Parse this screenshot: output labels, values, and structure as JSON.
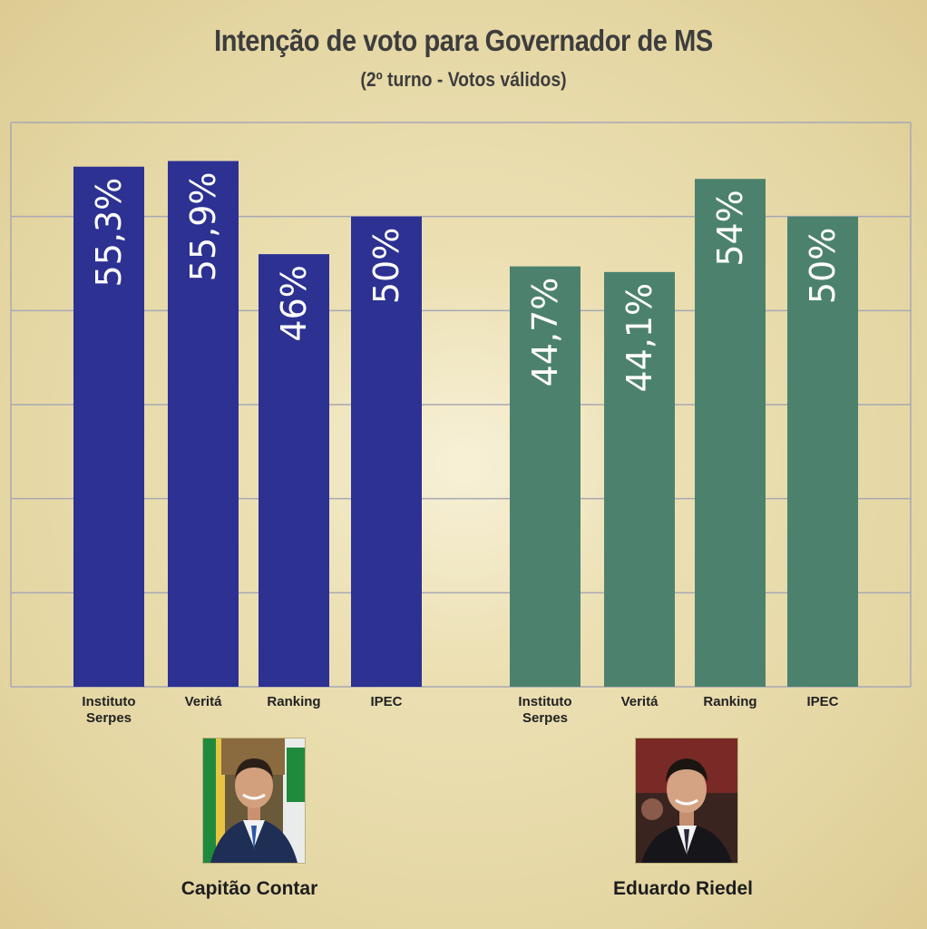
{
  "header": {
    "title": "Intenção de voto para Governador de MS",
    "subtitle": "(2º turno - Votos válidos)"
  },
  "colors": {
    "candidate_1": "#2c3192",
    "candidate_2": "#4c826d",
    "gridline": "#a8a8b4"
  },
  "candidates": [
    {
      "name": "Capitão Contar",
      "photo": "candidate-photo-capitao-contar"
    },
    {
      "name": "Eduardo Riedel",
      "photo": "candidate-photo-eduardo-riedel"
    }
  ],
  "chart_data": {
    "type": "bar",
    "title": "Intenção de voto para Governador de MS",
    "subtitle": "(2º turno - Votos válidos)",
    "ylim": [
      0,
      60
    ],
    "grid": true,
    "groups": [
      {
        "candidate": "Capitão Contar",
        "color": "#2c3192",
        "bars": [
          {
            "category": [
              "Instituto",
              "Serpes"
            ],
            "value": 55.3,
            "label": "55,3%"
          },
          {
            "category": [
              "Veritá"
            ],
            "value": 55.9,
            "label": "55,9%"
          },
          {
            "category": [
              "Ranking"
            ],
            "value": 46,
            "label": "46%"
          },
          {
            "category": [
              "IPEC"
            ],
            "value": 50,
            "label": "50%"
          }
        ]
      },
      {
        "candidate": "Eduardo Riedel",
        "color": "#4c826d",
        "bars": [
          {
            "category": [
              "Instituto",
              "Serpes"
            ],
            "value": 44.7,
            "label": "44,7%"
          },
          {
            "category": [
              "Veritá"
            ],
            "value": 44.1,
            "label": "44,1%"
          },
          {
            "category": [
              "Ranking"
            ],
            "value": 54,
            "label": "54%"
          },
          {
            "category": [
              "IPEC"
            ],
            "value": 50,
            "label": "50%"
          }
        ]
      }
    ]
  }
}
